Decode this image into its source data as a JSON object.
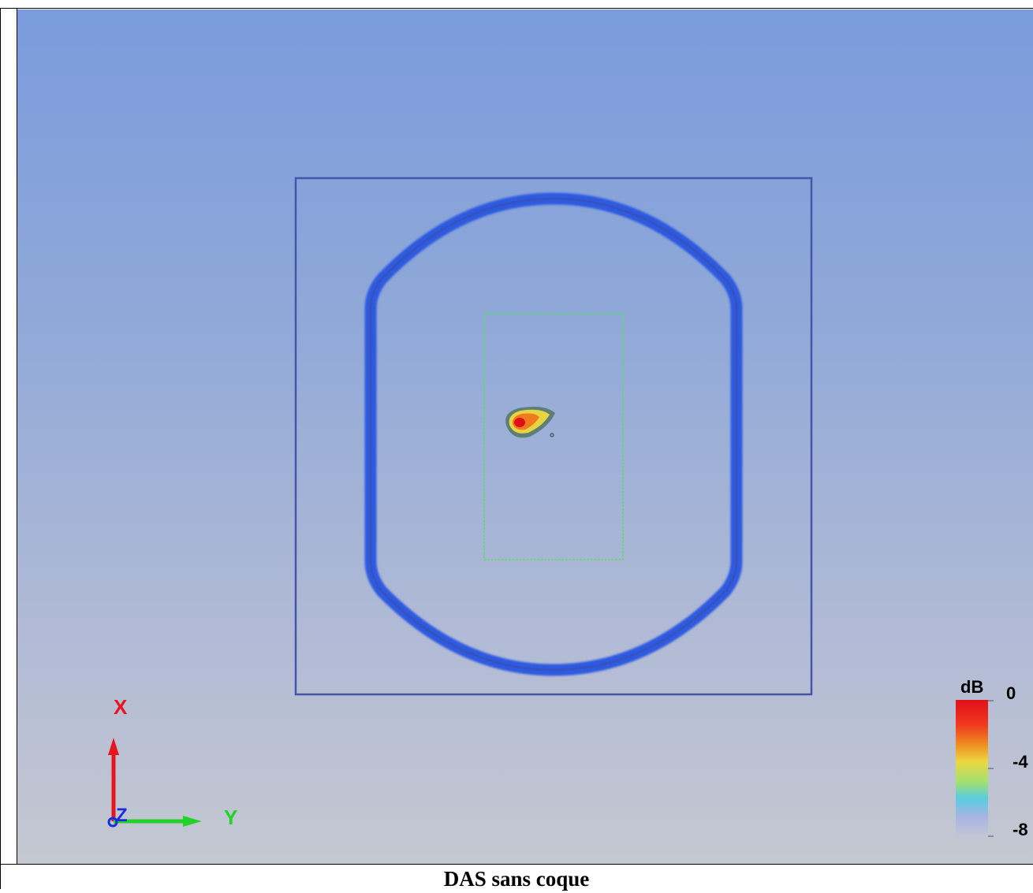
{
  "caption": "DAS sans coque",
  "axes": {
    "x_label": "X",
    "y_label": "Y",
    "z_label": "Z",
    "x_color": "#e8141e",
    "y_color": "#22d22a",
    "z_color": "#1a2ce0"
  },
  "legend": {
    "unit": "dB",
    "ticks": [
      "0",
      "-4",
      "-8"
    ],
    "colors": [
      "#e01018",
      "#f08020",
      "#f0e040",
      "#a0e070",
      "#50c8e0",
      "#a0b0e0",
      "#c0c4d8"
    ]
  },
  "scene": {
    "background_top": "#7a9bdc",
    "background_bottom": "#c5c8d1",
    "outline_color": "#2d5ae0",
    "box_color": "#4455aa",
    "scan_area_color": "#55e060"
  },
  "hotspot_icon": "heat-spot-icon"
}
